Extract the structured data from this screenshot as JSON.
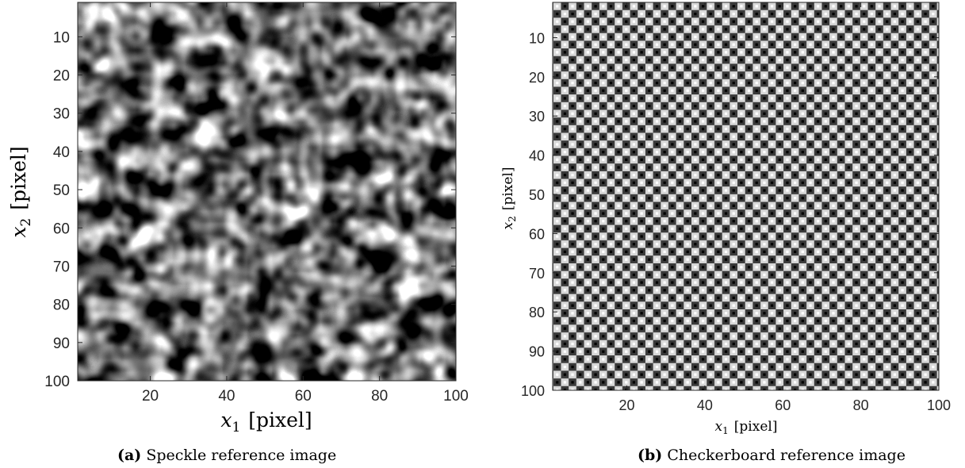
{
  "chart_data": [
    {
      "type": "heatmap",
      "title": "",
      "xlabel_var": "x",
      "xlabel_sub": "1",
      "xlabel_unit": "[pixel]",
      "ylabel_var": "x",
      "ylabel_sub": "2",
      "ylabel_unit": "[pixel]",
      "xlim": [
        1,
        100
      ],
      "ylim": [
        1,
        100
      ],
      "y_reversed": true,
      "colormap": "gray",
      "pattern": "speckle",
      "x_ticks": [
        "20",
        "40",
        "60",
        "80",
        "100"
      ],
      "y_ticks": [
        "10",
        "20",
        "30",
        "40",
        "50",
        "60",
        "70",
        "80",
        "90",
        "100"
      ],
      "caption_label": "(a)",
      "caption_text": "Speckle reference image"
    },
    {
      "type": "heatmap",
      "title": "",
      "xlabel_var": "x",
      "xlabel_sub": "1",
      "xlabel_unit": "[pixel]",
      "ylabel_var": "x",
      "ylabel_sub": "2",
      "ylabel_unit": "[pixel]",
      "xlim": [
        1,
        100
      ],
      "ylim": [
        1,
        100
      ],
      "y_reversed": true,
      "colormap": "gray",
      "pattern": "checkerboard",
      "x_ticks": [
        "20",
        "40",
        "60",
        "80",
        "100"
      ],
      "y_ticks": [
        "10",
        "20",
        "30",
        "40",
        "50",
        "60",
        "70",
        "80",
        "90",
        "100"
      ],
      "caption_label": "(b)",
      "caption_text": "Checkerboard reference image"
    }
  ]
}
